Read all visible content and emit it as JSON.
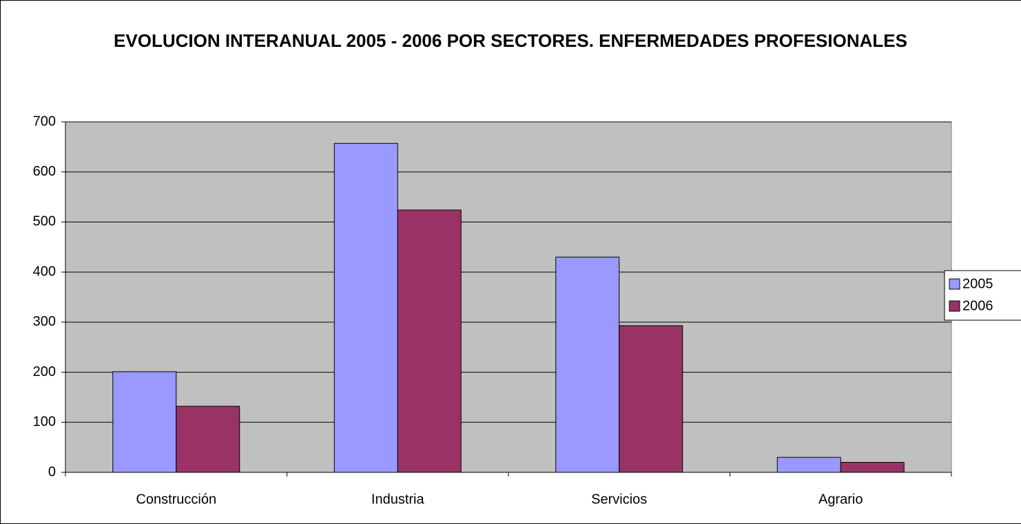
{
  "chart_data": {
    "type": "bar",
    "title": "EVOLUCION INTERANUAL 2005 - 2006 POR SECTORES. ENFERMEDADES PROFESIONALES",
    "categories": [
      "Construcción",
      "Industria",
      "Servicios",
      "Agrario"
    ],
    "series": [
      {
        "name": "2005",
        "color": "#9999ff",
        "values": [
          201,
          657,
          430,
          30
        ]
      },
      {
        "name": "2006",
        "color": "#993366",
        "values": [
          132,
          524,
          293,
          20
        ]
      }
    ],
    "ylim": [
      0,
      700
    ],
    "yticks": [
      0,
      100,
      200,
      300,
      400,
      500,
      600,
      700
    ],
    "grid": true,
    "legend": "right"
  }
}
